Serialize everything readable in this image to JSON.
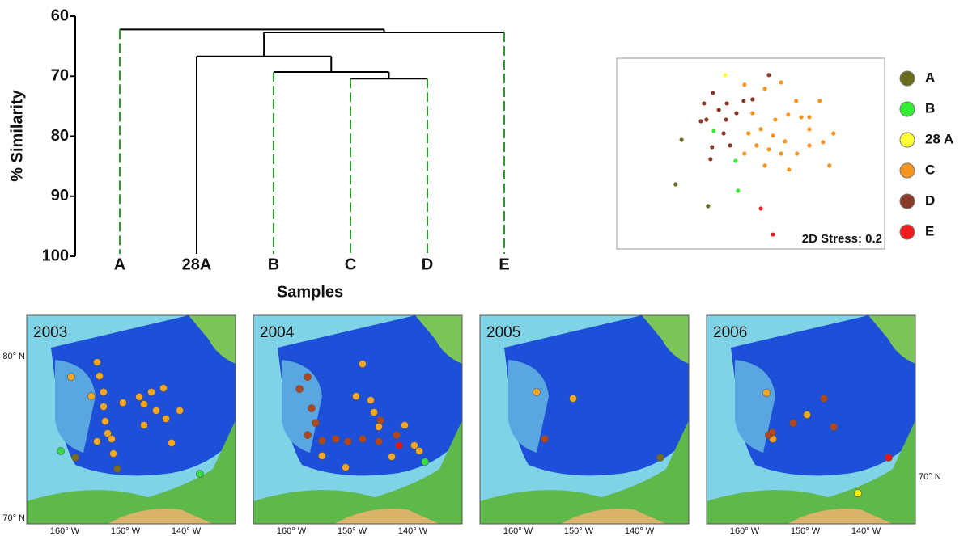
{
  "chart_data": [
    {
      "type": "dendrogram",
      "y_label": "% Similarity",
      "x_label": "Samples",
      "categories": [
        "A",
        "28A",
        "B",
        "C",
        "D",
        "E"
      ],
      "stem_colors": [
        "#2e9b2e",
        "#000000",
        "#2e9b2e",
        "#2e9b2e",
        "#2e9b2e",
        "#2e9b2e"
      ],
      "ylim": [
        60,
        100
      ],
      "yticks": [
        60,
        70,
        80,
        90,
        100
      ],
      "clusters": [
        {
          "leaves": [
            "C",
            "D"
          ],
          "height": 70.4
        },
        {
          "leaves": [
            "B",
            "C",
            "D"
          ],
          "height": 69.3
        },
        {
          "leaves": [
            "28A",
            "B",
            "C",
            "D"
          ],
          "height": 66.7
        },
        {
          "leaves": [
            "28A",
            "B",
            "C",
            "D",
            "E"
          ],
          "height": 62.7
        },
        {
          "leaves": [
            "A",
            "28A",
            "B",
            "C",
            "D",
            "E"
          ],
          "height": 62.2
        }
      ]
    },
    {
      "type": "scatter",
      "annotation": "2D Stress: 0.2",
      "xlim": [
        0,
        100
      ],
      "ylim": [
        0,
        100
      ],
      "legend": "right",
      "series": [
        {
          "name": "A",
          "color": "#6b6b1e",
          "x": [
            24.2,
            22.0,
            34.1
          ],
          "y": [
            57.2,
            33.9,
            22.5
          ]
        },
        {
          "name": "B",
          "color": "#33ee33",
          "x": [
            36.2,
            44.4,
            45.3
          ],
          "y": [
            61.9,
            46.2,
            30.5
          ]
        },
        {
          "name": "28 A",
          "color": "#ffff33",
          "x": [
            40.5
          ],
          "y": [
            91.2
          ]
        },
        {
          "name": "C",
          "color": "#f7941d",
          "x": [
            47.7,
            55.3,
            61.3,
            67.0,
            75.8,
            50.7,
            59.2,
            64.0,
            68.9,
            71.9,
            77.0,
            71.9,
            67.3,
            62.8,
            58.3,
            53.8,
            49.2,
            52.2,
            56.8,
            61.3,
            55.3,
            64.3,
            79.4,
            47.7,
            80.9,
            71.9
          ],
          "y": [
            86.1,
            84.0,
            87.3,
            77.6,
            77.6,
            71.2,
            67.8,
            70.4,
            69.1,
            62.8,
            56.0,
            54.3,
            50.0,
            56.4,
            59.4,
            62.8,
            60.6,
            54.3,
            52.2,
            50.0,
            43.7,
            41.6,
            43.7,
            50.0,
            60.6,
            69.1
          ]
        },
        {
          "name": "D",
          "color": "#8b3a2a",
          "x": [
            35.9,
            56.8,
            41.1,
            32.6,
            38.1,
            33.5,
            40.8,
            47.4,
            50.7,
            44.7,
            35.6,
            39.9,
            42.3,
            35.0,
            31.4
          ],
          "y": [
            81.8,
            91.2,
            76.3,
            76.3,
            72.9,
            67.8,
            67.8,
            77.6,
            78.4,
            71.2,
            53.4,
            60.6,
            54.3,
            47.1,
            67.0
          ]
        },
        {
          "name": "E",
          "color": "#ee1c1c",
          "x": [
            53.8,
            58.3
          ],
          "y": [
            21.2,
            7.6
          ]
        }
      ]
    },
    {
      "type": "map",
      "title": "2003",
      "lat_labels": [
        "80° N",
        "70° N"
      ],
      "lon_labels": [
        "160° W",
        "150° W",
        "140° W"
      ],
      "xlim": [
        0,
        100
      ],
      "ylim": [
        0,
        100
      ],
      "series": [
        {
          "color": "#f5a623",
          "x": [
            21.3,
            33.7,
            34.9,
            31.0,
            36.8,
            36.8,
            37.6,
            38.8,
            33.7,
            40.7,
            41.5,
            46.1,
            53.9,
            59.7,
            65.5,
            56.2,
            56.2,
            62.0,
            66.7,
            73.3,
            69.4
          ],
          "y": [
            70.5,
            77.5,
            70.9,
            61.2,
            63.2,
            56.2,
            49.2,
            43.4,
            39.5,
            40.7,
            33.7,
            58.1,
            60.9,
            63.2,
            65.1,
            57.4,
            47.3,
            54.3,
            50.4,
            54.3,
            38.8
          ]
        },
        {
          "color": "#7a6a1e",
          "x": [
            23.3,
            43.4
          ],
          "y": [
            31.8,
            26.4
          ]
        },
        {
          "color": "#33dd44",
          "x": [
            16.3,
            82.9
          ],
          "y": [
            34.9,
            24.0
          ]
        }
      ]
    },
    {
      "type": "map",
      "title": "2004",
      "lon_labels": [
        "160° W",
        "150° W",
        "140° W"
      ],
      "xlim": [
        0,
        100
      ],
      "ylim": [
        0,
        100
      ],
      "series": [
        {
          "color": "#b5451b",
          "x": [
            26.0,
            22.1,
            27.9,
            29.8,
            26.0,
            32.9,
            39.5,
            45.3,
            52.3,
            60.1,
            68.6,
            60.9
          ],
          "y": [
            70.5,
            64.7,
            55.4,
            48.4,
            42.6,
            39.9,
            40.7,
            39.5,
            40.7,
            39.5,
            42.6,
            49.6
          ]
        },
        {
          "color": "#f5a623",
          "x": [
            52.3,
            49.2,
            56.2,
            57.8,
            60.1,
            66.3,
            72.5,
            77.1,
            79.5,
            32.9,
            44.2
          ],
          "y": [
            76.7,
            61.2,
            59.3,
            53.5,
            46.5,
            32.2,
            47.3,
            37.6,
            34.9,
            32.6,
            27.1
          ]
        },
        {
          "color": "#e8151a",
          "x": [
            69.8
          ],
          "y": [
            37.6
          ]
        },
        {
          "color": "#33dd44",
          "x": [
            82.2
          ],
          "y": [
            29.8
          ]
        }
      ]
    },
    {
      "type": "map",
      "title": "2005",
      "lon_labels": [
        "160° W",
        "150° W",
        "140° W"
      ],
      "xlim": [
        0,
        100
      ],
      "ylim": [
        0,
        100
      ],
      "series": [
        {
          "color": "#f5a623",
          "x": [
            27.1,
            44.6
          ],
          "y": [
            63.2,
            60.1
          ]
        },
        {
          "color": "#b5451b",
          "x": [
            31.0
          ],
          "y": [
            40.7
          ]
        },
        {
          "color": "#7a6a1e",
          "x": [
            86.4
          ],
          "y": [
            31.8
          ]
        }
      ]
    },
    {
      "type": "map",
      "title": "2006",
      "lat_labels": [
        "70° N"
      ],
      "lon_labels": [
        "160° W",
        "150° W",
        "140° W"
      ],
      "xlim": [
        0,
        100
      ],
      "ylim": [
        0,
        100
      ],
      "series": [
        {
          "color": "#f5a623",
          "x": [
            28.7,
            31.8,
            48.1
          ],
          "y": [
            62.8,
            40.7,
            52.3
          ]
        },
        {
          "color": "#b5451b",
          "x": [
            29.8,
            31.4,
            41.5,
            56.2,
            60.9
          ],
          "y": [
            42.6,
            43.8,
            48.4,
            60.1,
            46.5
          ]
        },
        {
          "color": "#e8151a",
          "x": [
            87.2
          ],
          "y": [
            31.8
          ]
        },
        {
          "color": "#ffee00",
          "x": [
            72.5
          ],
          "y": [
            14.7
          ]
        }
      ]
    }
  ]
}
